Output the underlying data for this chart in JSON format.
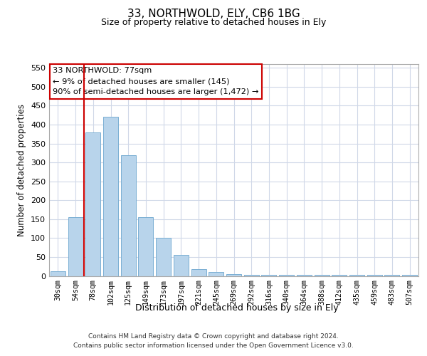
{
  "title": "33, NORTHWOLD, ELY, CB6 1BG",
  "subtitle": "Size of property relative to detached houses in Ely",
  "xlabel": "Distribution of detached houses by size in Ely",
  "ylabel": "Number of detached properties",
  "footer_line1": "Contains HM Land Registry data © Crown copyright and database right 2024.",
  "footer_line2": "Contains public sector information licensed under the Open Government Licence v3.0.",
  "annotation_line1": "33 NORTHWOLD: 77sqm",
  "annotation_line2": "← 9% of detached houses are smaller (145)",
  "annotation_line3": "90% of semi-detached houses are larger (1,472) →",
  "bar_color": "#b8d4eb",
  "bar_edge_color": "#7aafd4",
  "marker_line_color": "#cc0000",
  "annotation_box_edge_color": "#cc0000",
  "grid_color": "#d0d8e8",
  "categories": [
    "30sqm",
    "54sqm",
    "78sqm",
    "102sqm",
    "125sqm",
    "149sqm",
    "173sqm",
    "197sqm",
    "221sqm",
    "245sqm",
    "269sqm",
    "292sqm",
    "316sqm",
    "340sqm",
    "364sqm",
    "388sqm",
    "412sqm",
    "435sqm",
    "459sqm",
    "483sqm",
    "507sqm"
  ],
  "values": [
    12,
    155,
    380,
    420,
    320,
    155,
    100,
    55,
    18,
    10,
    5,
    3,
    2,
    2,
    2,
    2,
    2,
    2,
    2,
    2,
    2
  ],
  "marker_bin_index": 2,
  "ylim": [
    0,
    560
  ],
  "yticks": [
    0,
    50,
    100,
    150,
    200,
    250,
    300,
    350,
    400,
    450,
    500,
    550
  ]
}
